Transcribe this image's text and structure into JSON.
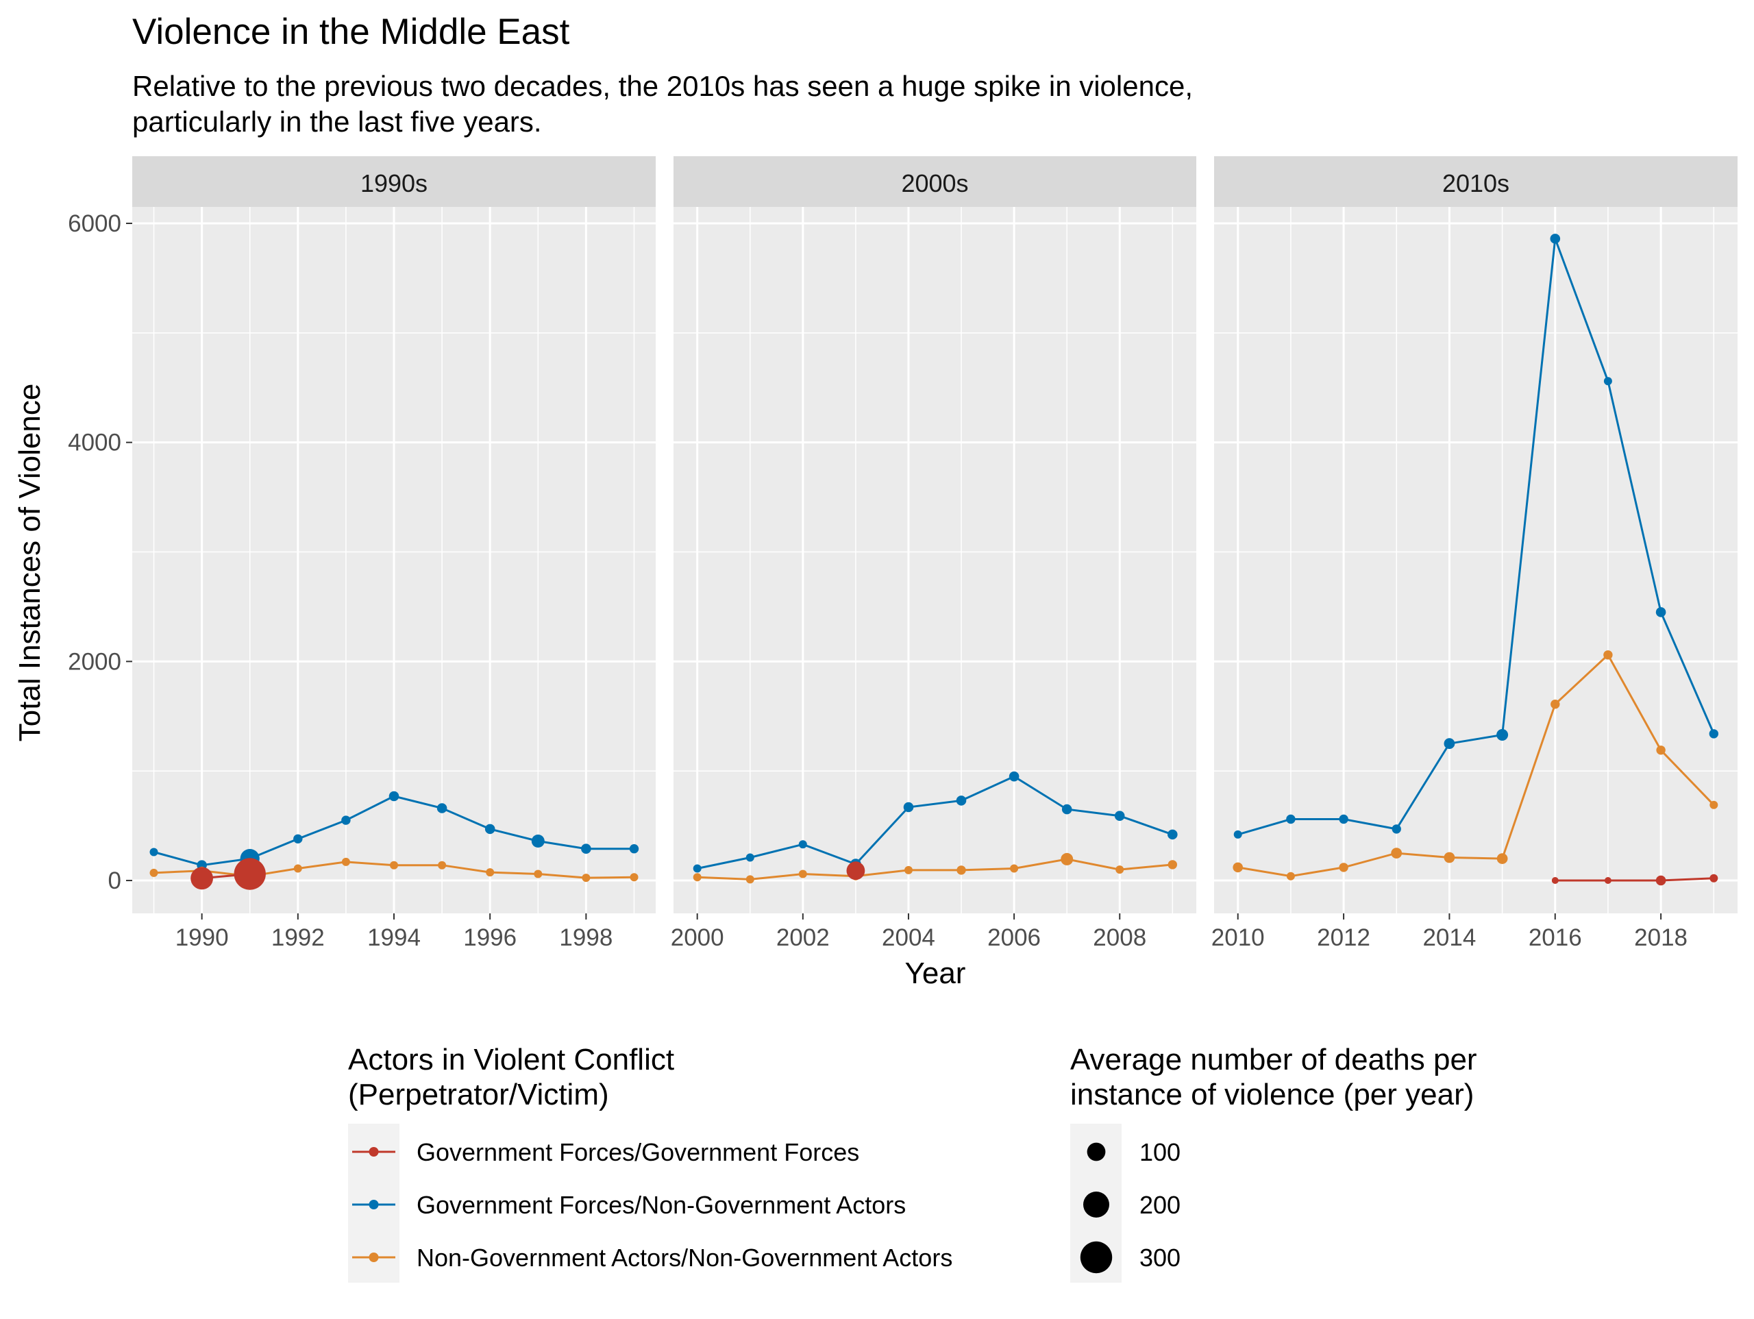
{
  "chart_data": {
    "type": "line",
    "title": "Violence in the Middle East",
    "subtitle": [
      "Relative to the previous two decades, the 2010s has seen a huge spike in violence,",
      "particularly in the last five years."
    ],
    "xlabel": "Year",
    "ylabel": "Total Instances of Violence",
    "ylim": [
      -300,
      6150
    ],
    "yticks": [
      0,
      2000,
      4000,
      6000
    ],
    "grid": true,
    "legend_position": "bottom",
    "panels": [
      {
        "label": "1990s",
        "xlim": [
          1988.55,
          1999.45
        ],
        "xticks": [
          1990,
          1992,
          1994,
          1996,
          1998
        ],
        "series": [
          {
            "key": "gov_gov",
            "points": [
              {
                "x": 1990,
                "y": 20,
                "size": 150
              },
              {
                "x": 1991,
                "y": 60,
                "size": 300
              }
            ]
          },
          {
            "key": "gov_nongov",
            "points": [
              {
                "x": 1989,
                "y": 260,
                "size": 20
              },
              {
                "x": 1990,
                "y": 140,
                "size": 30
              },
              {
                "x": 1991,
                "y": 200,
                "size": 110
              },
              {
                "x": 1992,
                "y": 380,
                "size": 25
              },
              {
                "x": 1993,
                "y": 550,
                "size": 25
              },
              {
                "x": 1994,
                "y": 770,
                "size": 30
              },
              {
                "x": 1995,
                "y": 660,
                "size": 30
              },
              {
                "x": 1996,
                "y": 470,
                "size": 30
              },
              {
                "x": 1997,
                "y": 360,
                "size": 50
              },
              {
                "x": 1998,
                "y": 290,
                "size": 30
              },
              {
                "x": 1999,
                "y": 290,
                "size": 25
              }
            ]
          },
          {
            "key": "nongov_nongov",
            "points": [
              {
                "x": 1989,
                "y": 70,
                "size": 20
              },
              {
                "x": 1990,
                "y": 90,
                "size": 20
              },
              {
                "x": 1991,
                "y": 40,
                "size": 20
              },
              {
                "x": 1992,
                "y": 110,
                "size": 20
              },
              {
                "x": 1993,
                "y": 170,
                "size": 20
              },
              {
                "x": 1994,
                "y": 140,
                "size": 20
              },
              {
                "x": 1995,
                "y": 140,
                "size": 20
              },
              {
                "x": 1996,
                "y": 75,
                "size": 20
              },
              {
                "x": 1997,
                "y": 60,
                "size": 20
              },
              {
                "x": 1998,
                "y": 25,
                "size": 20
              },
              {
                "x": 1999,
                "y": 30,
                "size": 20
              }
            ]
          }
        ]
      },
      {
        "label": "2000s",
        "xlim": [
          1999.55,
          2009.45
        ],
        "xticks": [
          2000,
          2002,
          2004,
          2006,
          2008
        ],
        "series": [
          {
            "key": "gov_gov",
            "points": [
              {
                "x": 2003,
                "y": 90,
                "size": 100
              }
            ]
          },
          {
            "key": "gov_nongov",
            "points": [
              {
                "x": 2000,
                "y": 110,
                "size": 20
              },
              {
                "x": 2001,
                "y": 210,
                "size": 20
              },
              {
                "x": 2002,
                "y": 330,
                "size": 20
              },
              {
                "x": 2003,
                "y": 150,
                "size": 35
              },
              {
                "x": 2004,
                "y": 670,
                "size": 30
              },
              {
                "x": 2005,
                "y": 730,
                "size": 30
              },
              {
                "x": 2006,
                "y": 950,
                "size": 30
              },
              {
                "x": 2007,
                "y": 650,
                "size": 30
              },
              {
                "x": 2008,
                "y": 590,
                "size": 30
              },
              {
                "x": 2009,
                "y": 420,
                "size": 30
              }
            ]
          },
          {
            "key": "nongov_nongov",
            "points": [
              {
                "x": 2000,
                "y": 30,
                "size": 20
              },
              {
                "x": 2001,
                "y": 10,
                "size": 20
              },
              {
                "x": 2002,
                "y": 60,
                "size": 20
              },
              {
                "x": 2003,
                "y": 40,
                "size": 20
              },
              {
                "x": 2004,
                "y": 95,
                "size": 20
              },
              {
                "x": 2005,
                "y": 95,
                "size": 25
              },
              {
                "x": 2006,
                "y": 110,
                "size": 20
              },
              {
                "x": 2007,
                "y": 195,
                "size": 45
              },
              {
                "x": 2008,
                "y": 100,
                "size": 20
              },
              {
                "x": 2009,
                "y": 145,
                "size": 25
              }
            ]
          }
        ]
      },
      {
        "label": "2010s",
        "xlim": [
          2009.55,
          2019.45
        ],
        "xticks": [
          2010,
          2012,
          2014,
          2016,
          2018
        ],
        "series": [
          {
            "key": "gov_gov",
            "points": [
              {
                "x": 2016,
                "y": 0,
                "size": 5
              },
              {
                "x": 2017,
                "y": 0,
                "size": 5
              },
              {
                "x": 2018,
                "y": 0,
                "size": 30
              },
              {
                "x": 2019,
                "y": 20,
                "size": 20
              }
            ]
          },
          {
            "key": "gov_nongov",
            "points": [
              {
                "x": 2010,
                "y": 420,
                "size": 20
              },
              {
                "x": 2011,
                "y": 560,
                "size": 25
              },
              {
                "x": 2012,
                "y": 560,
                "size": 25
              },
              {
                "x": 2013,
                "y": 470,
                "size": 25
              },
              {
                "x": 2014,
                "y": 1250,
                "size": 35
              },
              {
                "x": 2015,
                "y": 1330,
                "size": 40
              },
              {
                "x": 2016,
                "y": 5860,
                "size": 30
              },
              {
                "x": 2017,
                "y": 4560,
                "size": 20
              },
              {
                "x": 2018,
                "y": 2450,
                "size": 30
              },
              {
                "x": 2019,
                "y": 1340,
                "size": 25
              }
            ]
          },
          {
            "key": "nongov_nongov",
            "points": [
              {
                "x": 2010,
                "y": 120,
                "size": 30
              },
              {
                "x": 2011,
                "y": 40,
                "size": 20
              },
              {
                "x": 2012,
                "y": 120,
                "size": 25
              },
              {
                "x": 2013,
                "y": 250,
                "size": 35
              },
              {
                "x": 2014,
                "y": 210,
                "size": 35
              },
              {
                "x": 2015,
                "y": 200,
                "size": 35
              },
              {
                "x": 2016,
                "y": 1610,
                "size": 25
              },
              {
                "x": 2017,
                "y": 2060,
                "size": 25
              },
              {
                "x": 2018,
                "y": 1190,
                "size": 25
              },
              {
                "x": 2019,
                "y": 690,
                "size": 20
              }
            ]
          }
        ]
      }
    ],
    "series_meta": [
      {
        "key": "gov_gov",
        "name": "Government Forces/Government Forces",
        "color": "#c0392b"
      },
      {
        "key": "gov_nongov",
        "name": "Government Forces/Non-Government Actors",
        "color": "#0072b2"
      },
      {
        "key": "nongov_nongov",
        "name": "Non-Government Actors/Non-Government Actors",
        "color": "#e0882e"
      }
    ],
    "draw_order": [
      "gov_nongov",
      "nongov_nongov",
      "gov_gov"
    ],
    "legend_color": {
      "title": [
        "Actors in Violent Conflict",
        "(Perpetrator/Victim)"
      ]
    },
    "legend_size": {
      "title": [
        "Average number of deaths per",
        "instance of violence (per year)"
      ],
      "values": [
        100,
        200,
        300
      ]
    },
    "colors": {
      "panel_bg": "#ebebeb",
      "strip_bg": "#d9d9d9",
      "grid": "#ffffff",
      "text": "#000000",
      "axis_text": "#4d4d4d",
      "legend_key_bg": "#f2f2f2"
    }
  }
}
